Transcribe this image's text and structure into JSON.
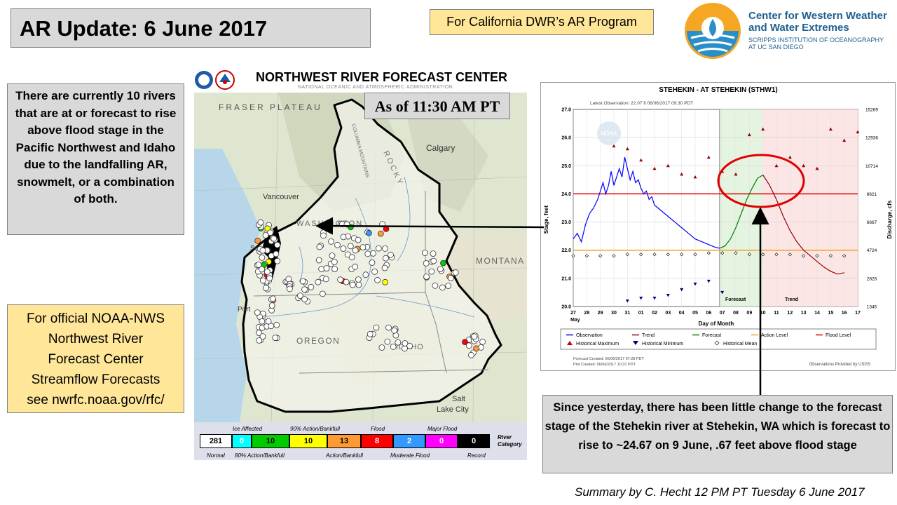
{
  "header": {
    "title": "AR Update: 6 June 2017",
    "program": "For California DWR’s AR Program",
    "org_name_line1": "Center for Western Weather",
    "org_name_line2": "and Water Extremes",
    "org_sub_line1": "SCRIPPS INSTITUTION OF OCEANOGRAPHY",
    "org_sub_line2": "AT UC SAN DIEGO"
  },
  "left_panel": {
    "rivers_text": "There are currently 10 rivers that are at or forecast to rise above flood stage in the Pacific Northwest  and Idaho due to the landfalling AR, snowmelt, or a combination  of both.",
    "official_line1": "For official NOAA-NWS",
    "official_line2": "Northwest River",
    "official_line3": "Forecast Center",
    "official_line4": "Streamflow Forecasts",
    "official_line5": "see nwrfc.noaa.gov/rfc/"
  },
  "map": {
    "title": "NORTHWEST RIVER FORECAST CENTER",
    "subtitle": "NATIONAL OCEANIC AND ATMOSPHERIC ADMINISTRATION",
    "as_of": "As of 11:30 AM PT",
    "labels": {
      "fraser": "FRASER PLATEAU",
      "calgary": "Calgary",
      "vancouver": "Vancouver",
      "seattle": "Seat",
      "washington": "WASHINGTON",
      "montana": "MONTANA",
      "oregon": "OREGON",
      "idaho": "IDAHO",
      "portland": "Port",
      "salt_lake_line1": "Salt",
      "salt_lake_line2": "Lake City",
      "rocky": "ROCKY",
      "columbia_mtns": "COLUMBIA MOUNTAINS"
    },
    "legend": {
      "top_labels": [
        "Ice Affected",
        "90% Action/Bankfull",
        "Flood",
        "Major Flood"
      ],
      "bottom_labels": [
        "Normal",
        "80% Action/Bankfull",
        "Action/Bankfull",
        "Moderate Flood",
        "Record"
      ],
      "category_line1": "River",
      "category_line2": "Category",
      "counts": [
        {
          "label": "281",
          "color": "#ffffff",
          "text_color": "#000000"
        },
        {
          "label": "0",
          "color": "#00ffff",
          "text_color": "#ffffff"
        },
        {
          "label": "10",
          "color": "#00cc00",
          "text_color": "#000000"
        },
        {
          "label": "10",
          "color": "#ffff00",
          "text_color": "#000000"
        },
        {
          "label": "13",
          "color": "#ff9933",
          "text_color": "#000000"
        },
        {
          "label": "8",
          "color": "#ff0000",
          "text_color": "#ffffff"
        },
        {
          "label": "2",
          "color": "#3399ff",
          "text_color": "#ffffff"
        },
        {
          "label": "0",
          "color": "#ff00ff",
          "text_color": "#ffffff"
        },
        {
          "label": "0",
          "color": "#000000",
          "text_color": "#ffffff"
        }
      ]
    }
  },
  "hydrograph": {
    "title": "STEHEKIN - AT STEHEKIN  (STHW1)",
    "latest_obs": "Latest Observation: 22.07 ft 06/06/2017 09:30 PDT",
    "ylabel": "Stage, feet",
    "ylabel_right": "Discharge, cfs",
    "xlabel": "Day of Month",
    "month_label": "May",
    "forecast_label": "Forecast",
    "trend_label": "Trend",
    "noaa_watermark": "NOAA",
    "footer_left_line1": "Forecast Created: 06/06/2017 07:28 PDT",
    "footer_left_line2": "Plot Created: 06/06/2017 10:37 PDT",
    "footer_right": "Observations Provided by USGS",
    "legend": [
      "Observation",
      "Trend",
      "Forecast",
      "Action Level",
      "Flood Level",
      "Historical Maximum",
      "Historical Minimum",
      "Historical Mean"
    ]
  },
  "chart_data": {
    "type": "line",
    "title": "STEHEKIN - AT STEHEKIN  (STHW1)",
    "xlabel": "Day of Month",
    "ylabel": "Stage, feet",
    "ylabel_right": "Discharge, cfs",
    "x_ticks": [
      "27",
      "28",
      "29",
      "30",
      "31",
      "01",
      "02",
      "03",
      "04",
      "05",
      "06",
      "07",
      "08",
      "09",
      "10",
      "11",
      "12",
      "13",
      "14",
      "15",
      "16",
      "17"
    ],
    "y_ticks": [
      20.0,
      21.0,
      22.0,
      23.0,
      24.0,
      25.0,
      26.0,
      27.0
    ],
    "y2_ticks": [
      "1345",
      "2826",
      "4724",
      "6667",
      "8621",
      "10714",
      "12936",
      "15269"
    ],
    "ylim": [
      20.0,
      27.0
    ],
    "xlim": [
      0,
      21
    ],
    "action_level": 22.0,
    "flood_level": 24.0,
    "series": [
      {
        "name": "Observation",
        "color": "#0000ff",
        "x": [
          0,
          0.3,
          0.6,
          0.9,
          1.2,
          1.5,
          1.8,
          2.0,
          2.2,
          2.4,
          2.6,
          2.8,
          3.0,
          3.2,
          3.4,
          3.6,
          3.8,
          4.0,
          4.2,
          4.4,
          4.6,
          4.8,
          5.0,
          5.2,
          5.4,
          5.6,
          5.8,
          6.0,
          6.5,
          7.0,
          7.5,
          8.0,
          8.5,
          9.0,
          9.5,
          10.0,
          10.5,
          10.8
        ],
        "y": [
          22.4,
          22.6,
          22.3,
          22.9,
          23.3,
          23.5,
          23.8,
          24.1,
          24.4,
          24.0,
          24.3,
          24.8,
          24.3,
          24.6,
          24.9,
          24.6,
          25.3,
          24.9,
          24.5,
          24.8,
          24.4,
          24.5,
          24.2,
          24.0,
          24.1,
          23.8,
          23.9,
          23.6,
          23.4,
          23.2,
          23.0,
          22.8,
          22.6,
          22.4,
          22.3,
          22.2,
          22.1,
          22.07
        ]
      },
      {
        "name": "Forecast",
        "color": "#008000",
        "x": [
          10.8,
          11.2,
          11.6,
          12.0,
          12.4,
          12.8,
          13.2,
          13.6,
          14.0
        ],
        "y": [
          22.07,
          22.15,
          22.4,
          22.8,
          23.3,
          23.8,
          24.2,
          24.55,
          24.67
        ]
      },
      {
        "name": "Trend",
        "color": "#990000",
        "x": [
          14.0,
          14.5,
          15.0,
          15.5,
          16.0,
          16.5,
          17.0,
          17.5,
          18.0,
          18.5,
          19.0,
          19.5,
          20.0
        ],
        "y": [
          24.67,
          24.3,
          23.8,
          23.2,
          22.7,
          22.3,
          22.0,
          21.8,
          21.6,
          21.4,
          21.25,
          21.15,
          21.2
        ]
      },
      {
        "name": "Historical Maximum",
        "color": "#990000",
        "x": [
          3,
          4,
          5,
          6,
          7,
          8,
          9,
          10,
          11,
          12,
          13,
          14,
          15,
          16,
          17,
          18,
          19,
          20,
          21
        ],
        "y": [
          25.7,
          25.6,
          25.2,
          24.9,
          25.0,
          24.7,
          24.6,
          25.3,
          24.8,
          24.7,
          26.1,
          26.3,
          25.0,
          25.3,
          25.0,
          24.9,
          26.3,
          25.9,
          26.2
        ]
      },
      {
        "name": "Historical Minimum",
        "color": "#000080",
        "x": [
          4,
          5,
          6,
          7,
          8,
          9,
          10,
          11
        ],
        "y": [
          20.2,
          20.3,
          20.3,
          20.4,
          20.6,
          20.8,
          20.9,
          20.5
        ]
      },
      {
        "name": "Historical Mean",
        "color": "#000000",
        "x": [
          0,
          1,
          2,
          3,
          4,
          5,
          6,
          7,
          8,
          9,
          10,
          11,
          12,
          13,
          14,
          15,
          16,
          17,
          18,
          19,
          20
        ],
        "y": [
          21.8,
          21.8,
          21.8,
          21.8,
          21.85,
          21.85,
          21.85,
          21.85,
          21.85,
          21.85,
          21.9,
          21.9,
          21.9,
          21.85,
          21.85,
          21.85,
          21.85,
          21.8,
          21.8,
          21.8,
          21.8
        ]
      }
    ]
  },
  "bottom_box": {
    "text": "Since yesterday, there has been little change to the forecast stage of the Stehekin river at Stehekin, WA which is forecast to rise to ~24.67 on 9 June, .67 feet above flood stage"
  },
  "footer": {
    "summary": "Summary by C. Hecht 12 PM PT Tuesday 6 June 2017"
  }
}
